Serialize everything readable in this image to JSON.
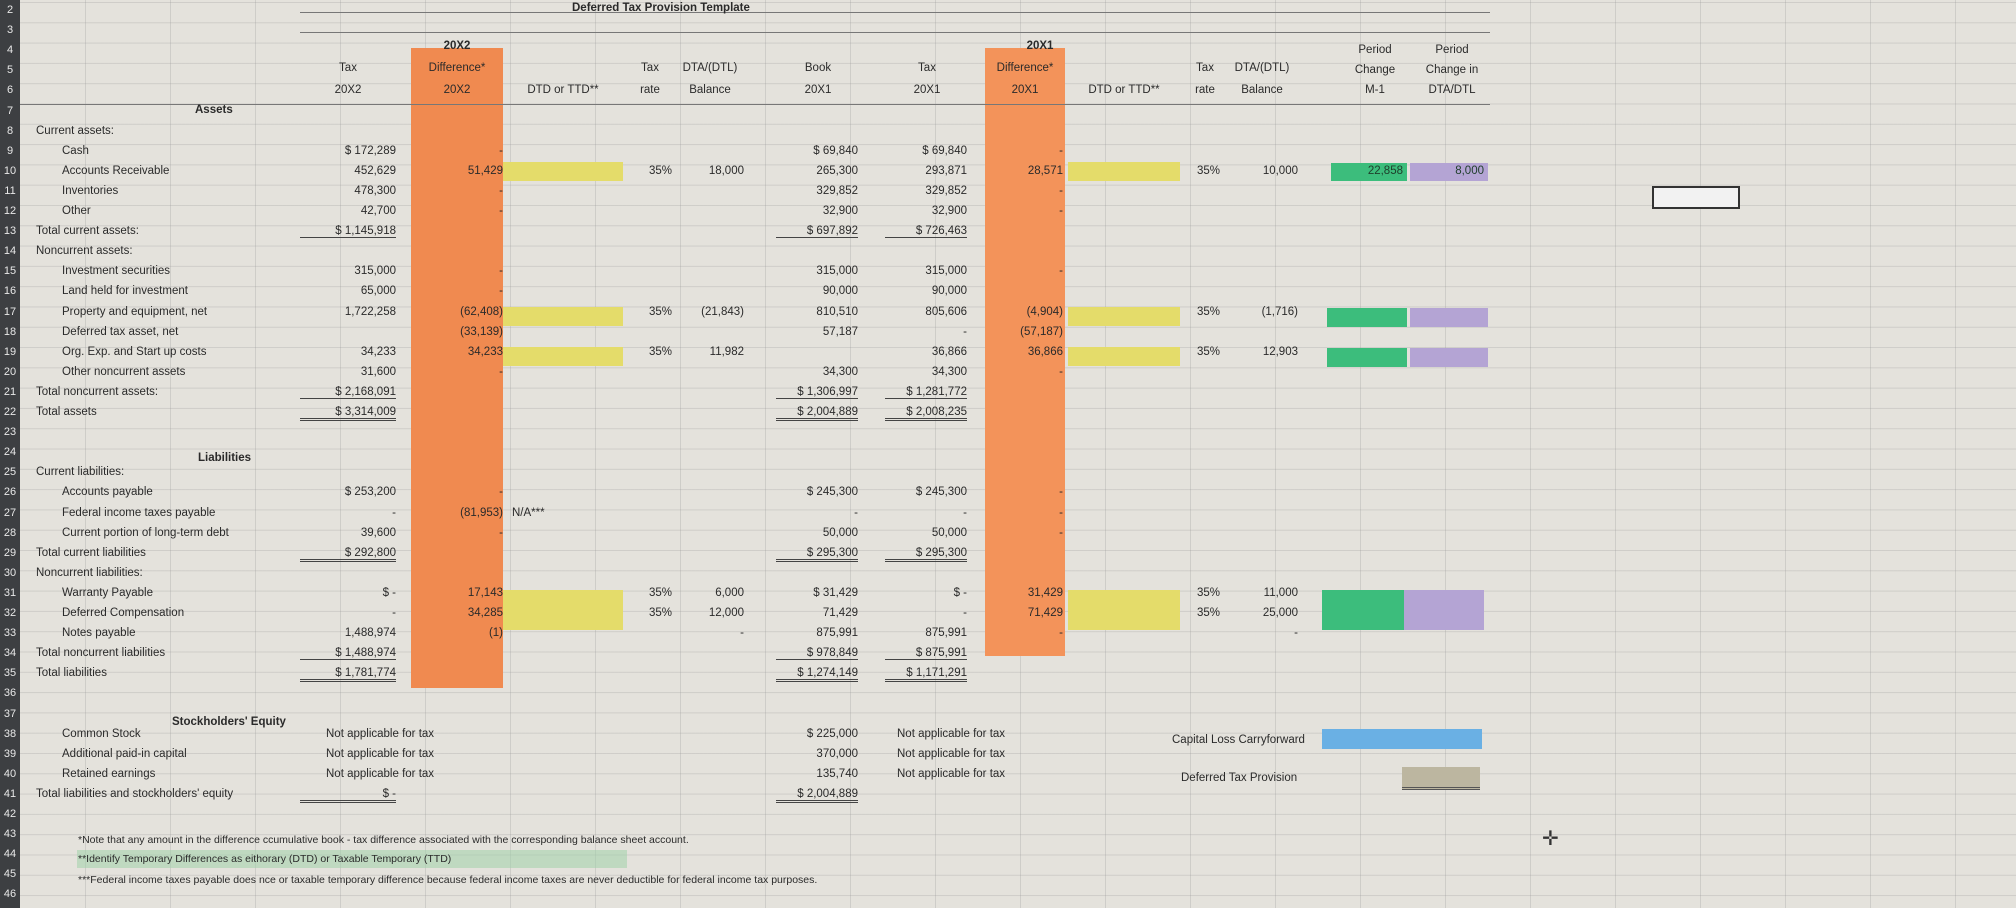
{
  "sheet": {
    "title": "Deferred Tax Provision Template",
    "row_numbers": [
      "2",
      "3",
      "4",
      "5",
      "6",
      "7",
      "8",
      "9",
      "10",
      "11",
      "12",
      "13",
      "14",
      "15",
      "16",
      "17",
      "18",
      "19",
      "20",
      "21",
      "22",
      "23",
      "24",
      "25",
      "26",
      "27",
      "28",
      "29",
      "30",
      "31",
      "32",
      "33",
      "34",
      "35",
      "36",
      "37",
      "38",
      "39",
      "40",
      "41",
      "42",
      "43",
      "44",
      "45",
      "46"
    ],
    "headers": {
      "y2_year": "20X2",
      "y2_tax": "Tax",
      "y2_tax_year": "20X2",
      "y2_diff": "Difference*",
      "y2_diff_year": "20X2",
      "y2_dtd": "DTD or TTD**",
      "y2_rate_1": "Tax",
      "y2_rate_2": "rate",
      "y2_dta_1": "DTA/(DTL)",
      "y2_dta_2": "Balance",
      "book_1": "Book",
      "book_2": "20X1",
      "y1_tax": "Tax",
      "y1_tax_year": "20X1",
      "y1_year": "20X1",
      "y1_diff": "Difference*",
      "y1_diff_year": "20X1",
      "y1_dtd": "DTD or TTD**",
      "y1_rate_1": "Tax",
      "y1_rate_2": "rate",
      "y1_dta_1": "DTA/(DTL)",
      "y1_dta_2": "Balance",
      "pc_1": "Period",
      "pc_2": "Change",
      "pc_3": "M-1",
      "pcd_1": "Period",
      "pcd_2": "Change in",
      "pcd_3": "DTA/DTL"
    },
    "sections": {
      "assets": "Assets",
      "liabilities": "Liabilities",
      "equity": "Stockholders' Equity"
    },
    "side_labels": {
      "capital_loss": "Capital Loss Carryforward",
      "deferred_provision": "Deferred Tax Provision"
    },
    "notes": [
      "*Note that any amount in the difference ccumulative book - tax difference associated with the corresponding balance sheet account.",
      "**Identify Temporary Differences as eithorary (DTD) or Taxable Temporary (TTD)",
      "***Federal income taxes payable does nce or taxable temporary difference because federal income taxes are never deductible for federal income tax purposes."
    ],
    "rows": [
      {
        "row": 8,
        "label": "Current assets:",
        "indent": 0
      },
      {
        "row": 9,
        "label": "Cash",
        "indent": 1,
        "tax20x2": "$   172,289",
        "diff20x2": "-",
        "book20x1": "$        69,840",
        "tax20x1": "$       69,840",
        "diff20x1": "-"
      },
      {
        "row": 10,
        "label": "Accounts Receivable",
        "indent": 1,
        "tax20x2": "452,629",
        "diff20x2": "51,429",
        "rate2": "35%",
        "dta2": "18,000",
        "book20x1": "265,300",
        "tax20x1": "293,871",
        "diff20x1": "28,571",
        "rate1": "35%",
        "dta1": "10,000",
        "m1": "22,858",
        "chg": "8,000"
      },
      {
        "row": 11,
        "label": "Inventories",
        "indent": 1,
        "tax20x2": "478,300",
        "diff20x2": "-",
        "book20x1": "329,852",
        "tax20x1": "329,852",
        "diff20x1": "-"
      },
      {
        "row": 12,
        "label": "Other",
        "indent": 1,
        "tax20x2": "42,700",
        "diff20x2": "-",
        "book20x1": "32,900",
        "tax20x1": "32,900",
        "diff20x1": "-"
      },
      {
        "row": 13,
        "label": "Total current assets:",
        "indent": 0,
        "tax20x2": "$ 1,145,918",
        "book20x1": "$     697,892",
        "tax20x1": "$     726,463"
      },
      {
        "row": 14,
        "label": "Noncurrent assets:",
        "indent": 0
      },
      {
        "row": 15,
        "label": "Investment securities",
        "indent": 1,
        "tax20x2": "315,000",
        "diff20x2": "-",
        "book20x1": "315,000",
        "tax20x1": "315,000",
        "diff20x1": "-"
      },
      {
        "row": 16,
        "label": "Land held for investment",
        "indent": 1,
        "tax20x2": "65,000",
        "diff20x2": "-",
        "book20x1": "90,000",
        "tax20x1": "90,000"
      },
      {
        "row": 17,
        "label": "Property and equipment, net",
        "indent": 1,
        "tax20x2": "1,722,258",
        "diff20x2": "(62,408)",
        "rate2": "35%",
        "dta2": "(21,843)",
        "book20x1": "810,510",
        "tax20x1": "805,606",
        "diff20x1": "(4,904)",
        "rate1": "35%",
        "dta1": "(1,716)"
      },
      {
        "row": 18,
        "label": "Deferred tax asset, net",
        "indent": 1,
        "diff20x2": "(33,139)",
        "book20x1": "57,187",
        "tax20x1": "-",
        "diff20x1": "(57,187)"
      },
      {
        "row": 19,
        "label": "Org. Exp. and Start up costs",
        "indent": 1,
        "tax20x2": "34,233",
        "diff20x2": "34,233",
        "rate2": "35%",
        "dta2": "11,982",
        "tax20x1": "36,866",
        "diff20x1": "36,866",
        "rate1": "35%",
        "dta1": "12,903"
      },
      {
        "row": 20,
        "label": "Other noncurrent assets",
        "indent": 1,
        "tax20x2": "31,600",
        "diff20x2": "-",
        "book20x1": "34,300",
        "tax20x1": "34,300",
        "diff20x1": "-"
      },
      {
        "row": 21,
        "label": "Total noncurrent assets:",
        "indent": 0,
        "tax20x2": "$ 2,168,091",
        "book20x1": "$  1,306,997",
        "tax20x1": "$  1,281,772"
      },
      {
        "row": 22,
        "label": "Total assets",
        "indent": 0,
        "tax20x2": "$ 3,314,009",
        "book20x1": "$  2,004,889",
        "tax20x1": "$  2,008,235"
      },
      {
        "row": 25,
        "label": "Current liabilities:",
        "indent": 0
      },
      {
        "row": 26,
        "label": "Accounts payable",
        "indent": 1,
        "tax20x2": "$   253,200",
        "diff20x2": "-",
        "book20x1": "$     245,300",
        "tax20x1": "$     245,300",
        "diff20x1": "-"
      },
      {
        "row": 27,
        "label": "Federal income taxes payable",
        "indent": 1,
        "tax20x2": "-",
        "diff20x2": "(81,953)",
        "na": "N/A***",
        "book20x1": "-",
        "tax20x1": "-",
        "diff20x1": "-"
      },
      {
        "row": 28,
        "label": "Current portion of long-term debt",
        "indent": 1,
        "tax20x2": "39,600",
        "diff20x2": "-",
        "book20x1": "50,000",
        "tax20x1": "50,000",
        "diff20x1": "-"
      },
      {
        "row": 29,
        "label": "Total current liabilities",
        "indent": 0,
        "tax20x2": "$   292,800",
        "book20x1": "$     295,300",
        "tax20x1": "$     295,300"
      },
      {
        "row": 30,
        "label": "Noncurrent liabilities:",
        "indent": 0
      },
      {
        "row": 31,
        "label": "Warranty Payable",
        "indent": 1,
        "tax20x2": "$               -",
        "diff20x2": "17,143",
        "rate2": "35%",
        "dta2": "6,000",
        "book20x1": "$        31,429",
        "tax20x1": "$                 -",
        "diff20x1": "31,429",
        "rate1": "35%",
        "dta1": "11,000"
      },
      {
        "row": 32,
        "label": "Deferred Compensation",
        "indent": 1,
        "tax20x2": "-",
        "diff20x2": "34,285",
        "rate2": "35%",
        "dta2": "12,000",
        "book20x1": "71,429",
        "tax20x1": "-",
        "diff20x1": "71,429",
        "rate1": "35%",
        "dta1": "25,000"
      },
      {
        "row": 33,
        "label": "Notes payable",
        "indent": 1,
        "tax20x2": "1,488,974",
        "diff20x2": "(1)",
        "dta2": "-",
        "book20x1": "875,991",
        "tax20x1": "875,991",
        "diff20x1": "-",
        "dta1": "-"
      },
      {
        "row": 34,
        "label": "Total noncurrent liabilities",
        "indent": 0,
        "tax20x2": "$ 1,488,974",
        "book20x1": "$     978,849",
        "tax20x1": "$     875,991"
      },
      {
        "row": 35,
        "label": "Total liabilities",
        "indent": 0,
        "tax20x2": "$ 1,781,774",
        "book20x1": "$  1,274,149",
        "tax20x1": "$  1,171,291"
      },
      {
        "row": 38,
        "label": "Common Stock",
        "indent": 1,
        "tax_text": "Not applicable for tax",
        "book20x1": "$     225,000",
        "tax1_text": "Not applicable for tax"
      },
      {
        "row": 39,
        "label": "Additional paid-in capital",
        "indent": 1,
        "tax_text": "Not applicable for tax",
        "book20x1": "370,000",
        "tax1_text": "Not applicable for tax"
      },
      {
        "row": 40,
        "label": "Retained earnings",
        "indent": 1,
        "tax_text": "Not applicable for tax",
        "book20x1": "135,740",
        "tax1_text": "Not applicable for tax"
      },
      {
        "row": 41,
        "label": "Total liabilities and stockholders' equity",
        "indent": 0,
        "tax20x2": "$               -",
        "book20x1": "$  2,004,889"
      }
    ],
    "colors": {
      "difference_column": "#f08a50",
      "dtd_cell": "#e4dc6a",
      "m1_cell": "#3cbd7c",
      "dta_change_cell": "#b4a4d4",
      "capital_loss_cell": "#6ab0e4",
      "provision_cell": "#bcb6a0"
    }
  }
}
